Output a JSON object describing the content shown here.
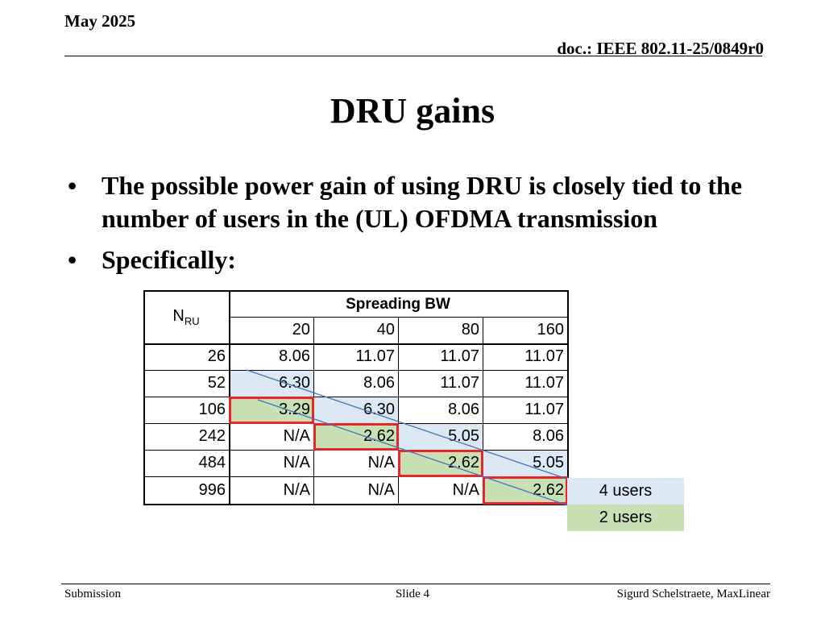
{
  "header": {
    "date": "May 2025",
    "doc_id": "doc.: IEEE 802.11-25/0849r0"
  },
  "title": "DRU gains",
  "bullets": [
    "The possible power gain of using DRU is closely tied to the number of users in the (UL) OFDMA transmission",
    "Specifically:"
  ],
  "table": {
    "row_header": "N",
    "row_header_sub": "RU",
    "col_group_header": "Spreading BW",
    "columns": [
      "20",
      "40",
      "80",
      "160"
    ],
    "rows": [
      {
        "nru": "26",
        "cells": [
          "8.06",
          "11.07",
          "11.07",
          "11.07"
        ]
      },
      {
        "nru": "52",
        "cells": [
          "6.30",
          "8.06",
          "11.07",
          "11.07"
        ]
      },
      {
        "nru": "106",
        "cells": [
          "3.29",
          "6.30",
          "8.06",
          "11.07"
        ]
      },
      {
        "nru": "242",
        "cells": [
          "N/A",
          "2.62",
          "5.05",
          "8.06"
        ]
      },
      {
        "nru": "484",
        "cells": [
          "N/A",
          "N/A",
          "2.62",
          "5.05"
        ]
      },
      {
        "nru": "996",
        "cells": [
          "N/A",
          "N/A",
          "N/A",
          "2.62"
        ]
      }
    ],
    "highlight_colors": {
      "four_users": "#dce9f5",
      "two_users": "#c9e0b4",
      "outline": "#e8262a",
      "arrow": "#4472c4"
    }
  },
  "legend": {
    "four_users": "4 users",
    "two_users": "2 users"
  },
  "footer": {
    "left": "Submission",
    "center": "Slide 4",
    "right": "Sigurd Schelstraete, MaxLinear"
  }
}
